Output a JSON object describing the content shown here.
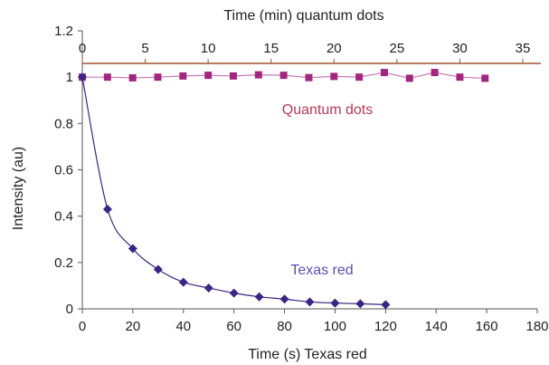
{
  "chart_data": {
    "type": "scatter",
    "title": "",
    "ylabel": "Intensity (au)",
    "xlabel_bottom": "Time (s) Texas red",
    "xlabel_top": "Time (min) quantum dots",
    "ylim": [
      0,
      1.2
    ],
    "yticks": [
      0,
      0.2,
      0.4,
      0.6,
      0.8,
      1,
      1.2
    ],
    "ytick_labels": [
      "0",
      "0.2",
      "0.4",
      "0.6",
      "0.8",
      "1",
      "1.2"
    ],
    "xlim_bottom": [
      0,
      180
    ],
    "xticks_bottom": [
      0,
      20,
      40,
      60,
      80,
      100,
      120,
      140,
      160,
      180
    ],
    "xtick_labels_bottom": [
      "0",
      "20",
      "40",
      "60",
      "80",
      "100",
      "120",
      "140",
      "160",
      "180"
    ],
    "xlim_top": [
      0,
      35
    ],
    "xticks_top": [
      0,
      5,
      10,
      15,
      20,
      25,
      30,
      35
    ],
    "xtick_labels_top": [
      "0",
      "5",
      "10",
      "15",
      "20",
      "25",
      "30",
      "35"
    ],
    "grid": false,
    "series": [
      {
        "name": "Quantum dots",
        "axis": "top",
        "marker": "square",
        "color": "#a2267f",
        "line_color": "#c778b4",
        "label_color": "#b53a56",
        "x": [
          0,
          2,
          4,
          6,
          8,
          10,
          12,
          14,
          16,
          18,
          20,
          22,
          24,
          26,
          28,
          30,
          32
        ],
        "y": [
          1.0,
          1.0,
          0.997,
          1.0,
          1.005,
          1.008,
          1.005,
          1.01,
          1.008,
          0.998,
          1.003,
          1.0,
          1.02,
          0.995,
          1.02,
          1.0,
          0.995
        ]
      },
      {
        "name": "Texas red",
        "axis": "bottom",
        "marker": "diamond",
        "color": "#3b2483",
        "line_color": "#3b2483",
        "label_color": "#5a4fb0",
        "x": [
          0,
          10,
          20,
          30,
          40,
          50,
          60,
          70,
          80,
          90,
          100,
          110,
          120
        ],
        "y": [
          1.0,
          0.43,
          0.26,
          0.17,
          0.115,
          0.09,
          0.068,
          0.052,
          0.042,
          0.03,
          0.025,
          0.022,
          0.018
        ]
      }
    ]
  }
}
